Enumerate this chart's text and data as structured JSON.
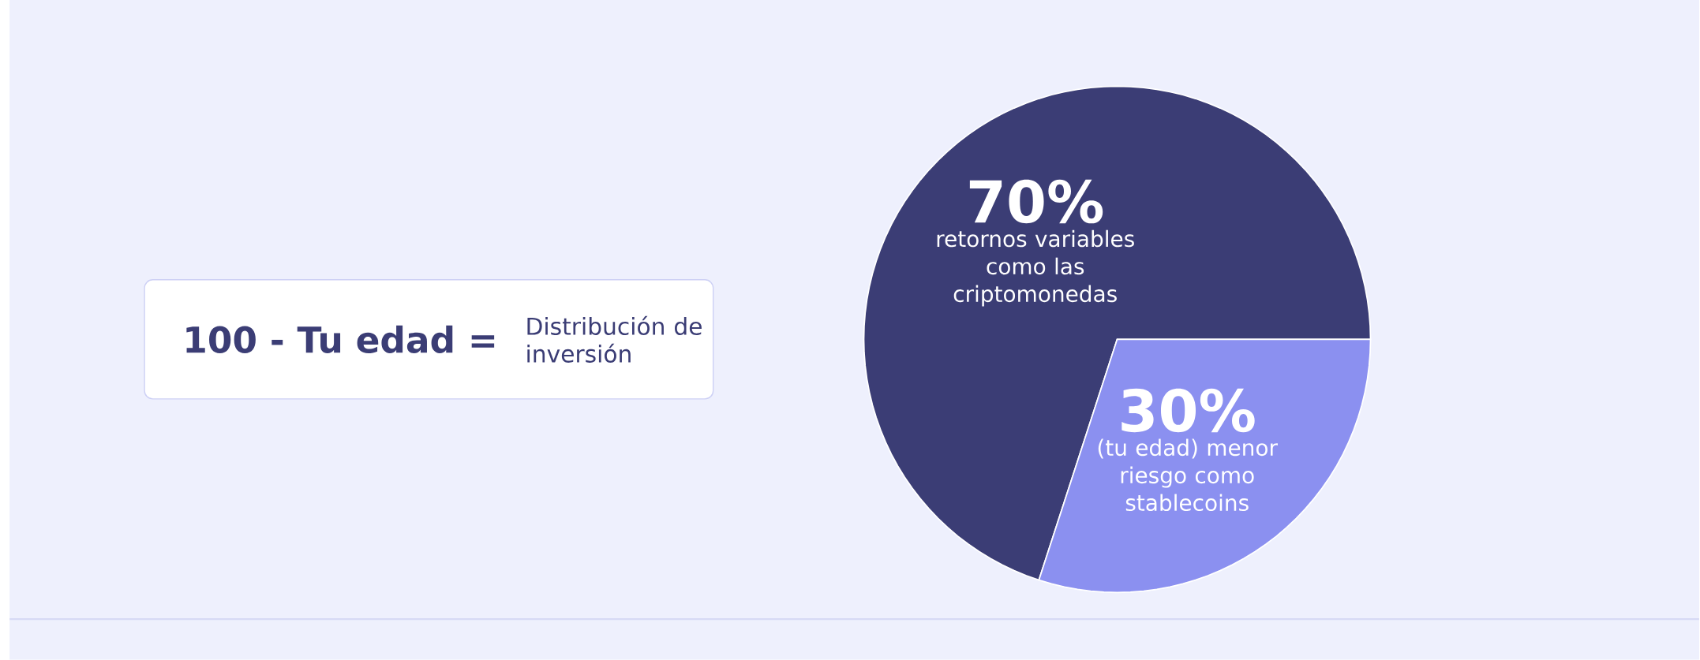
{
  "chart_data": {
    "type": "pie",
    "categories": [
      "retornos variables como las criptomonedas",
      "(tu edad) menor riesgo como stablecoins"
    ],
    "values": [
      70,
      30
    ],
    "colors": [
      "#3b3d75",
      "#8b90f0"
    ],
    "value_labels": [
      "70%",
      "30%"
    ],
    "annotations": [
      "100 - Tu edad =",
      "Distribución de inversión"
    ]
  }
}
